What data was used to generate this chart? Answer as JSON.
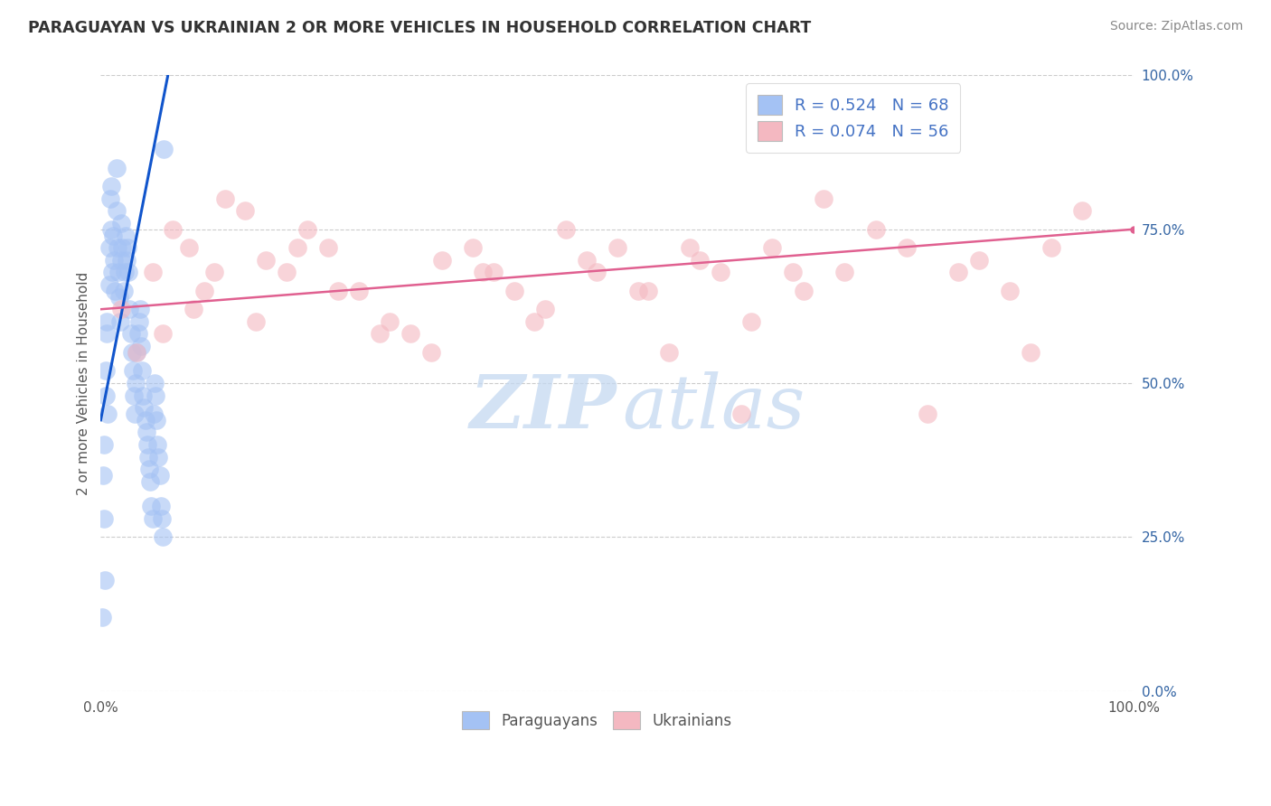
{
  "title": "PARAGUAYAN VS UKRAINIAN 2 OR MORE VEHICLES IN HOUSEHOLD CORRELATION CHART",
  "source": "Source: ZipAtlas.com",
  "ylabel": "2 or more Vehicles in Household",
  "legend_blue_r": "R = 0.524",
  "legend_blue_n": "N = 68",
  "legend_pink_r": "R = 0.074",
  "legend_pink_n": "N = 56",
  "blue_color": "#a4c2f4",
  "pink_color": "#f4b8c1",
  "blue_line_color": "#1155cc",
  "pink_line_color": "#e06090",
  "watermark_zip": "ZIP",
  "watermark_atlas": "atlas",
  "paraguayan_x": [
    0.2,
    0.3,
    0.4,
    0.5,
    0.5,
    0.6,
    0.7,
    0.8,
    0.8,
    0.9,
    1.0,
    1.0,
    1.1,
    1.2,
    1.3,
    1.4,
    1.5,
    1.5,
    1.6,
    1.7,
    1.8,
    1.9,
    2.0,
    2.0,
    2.1,
    2.2,
    2.3,
    2.4,
    2.5,
    2.6,
    2.7,
    2.8,
    2.9,
    3.0,
    3.1,
    3.2,
    3.3,
    3.4,
    3.5,
    3.6,
    3.7,
    3.8,
    3.9,
    4.0,
    4.1,
    4.2,
    4.3,
    4.4,
    4.5,
    4.6,
    4.7,
    4.8,
    4.9,
    5.0,
    5.1,
    5.2,
    5.3,
    5.4,
    5.5,
    5.6,
    5.7,
    5.8,
    5.9,
    6.0,
    6.1,
    0.1,
    0.3,
    0.6
  ],
  "paraguayan_y": [
    35,
    28,
    18,
    52,
    48,
    60,
    45,
    72,
    66,
    80,
    75,
    82,
    68,
    74,
    70,
    65,
    78,
    85,
    72,
    68,
    64,
    60,
    76,
    70,
    72,
    65,
    68,
    74,
    70,
    72,
    68,
    62,
    58,
    55,
    52,
    48,
    45,
    50,
    55,
    58,
    60,
    62,
    56,
    52,
    48,
    46,
    44,
    42,
    40,
    38,
    36,
    34,
    30,
    28,
    45,
    50,
    48,
    44,
    40,
    38,
    35,
    30,
    28,
    25,
    88,
    12,
    40,
    58
  ],
  "ukrainian_x": [
    2.0,
    3.5,
    5.0,
    7.0,
    8.5,
    10.0,
    12.0,
    14.0,
    16.0,
    18.0,
    20.0,
    22.0,
    25.0,
    28.0,
    30.0,
    33.0,
    36.0,
    38.0,
    40.0,
    42.0,
    45.0,
    48.0,
    50.0,
    52.0,
    55.0,
    58.0,
    60.0,
    62.0,
    65.0,
    68.0,
    70.0,
    72.0,
    75.0,
    78.0,
    80.0,
    83.0,
    85.0,
    88.0,
    90.0,
    92.0,
    95.0,
    6.0,
    9.0,
    11.0,
    15.0,
    19.0,
    23.0,
    27.0,
    32.0,
    37.0,
    43.0,
    47.0,
    53.0,
    57.0,
    63.0,
    67.0
  ],
  "ukrainian_y": [
    62,
    55,
    68,
    75,
    72,
    65,
    80,
    78,
    70,
    68,
    75,
    72,
    65,
    60,
    58,
    70,
    72,
    68,
    65,
    60,
    75,
    68,
    72,
    65,
    55,
    70,
    68,
    45,
    72,
    65,
    80,
    68,
    75,
    72,
    45,
    68,
    70,
    65,
    55,
    72,
    78,
    58,
    62,
    68,
    60,
    72,
    65,
    58,
    55,
    68,
    62,
    70,
    65,
    72,
    60,
    68
  ],
  "blue_reg_x0": 0.0,
  "blue_reg_y0": 44.0,
  "blue_reg_x1": 6.5,
  "blue_reg_y1": 100.0,
  "pink_reg_x0": 0.0,
  "pink_reg_y0": 62.0,
  "pink_reg_x1": 100.0,
  "pink_reg_y1": 75.0,
  "xmin": 0,
  "xmax": 100,
  "ymin": 0,
  "ymax": 100,
  "y_gridlines": [
    0,
    25,
    50,
    75,
    100
  ]
}
